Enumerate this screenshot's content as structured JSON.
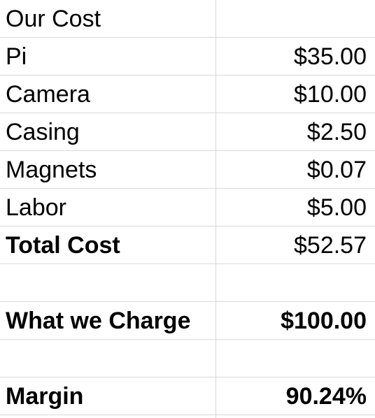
{
  "rows": [
    {
      "label": "Our Cost",
      "value": ""
    },
    {
      "label": "Pi",
      "value": "$35.00"
    },
    {
      "label": "Camera",
      "value": "$10.00"
    },
    {
      "label": "Casing",
      "value": "$2.50"
    },
    {
      "label": "Magnets",
      "value": "$0.07"
    },
    {
      "label": "Labor",
      "value": "$5.00"
    },
    {
      "label": "Total Cost",
      "value": "$52.57"
    },
    {
      "label": "",
      "value": ""
    },
    {
      "label": "What we Charge",
      "value": "$100.00"
    },
    {
      "label": "",
      "value": ""
    },
    {
      "label": "Margin",
      "value": "90.24%"
    }
  ],
  "colors": {
    "gridline": "#d8d8d8",
    "text": "#000000",
    "background": "#ffffff"
  }
}
